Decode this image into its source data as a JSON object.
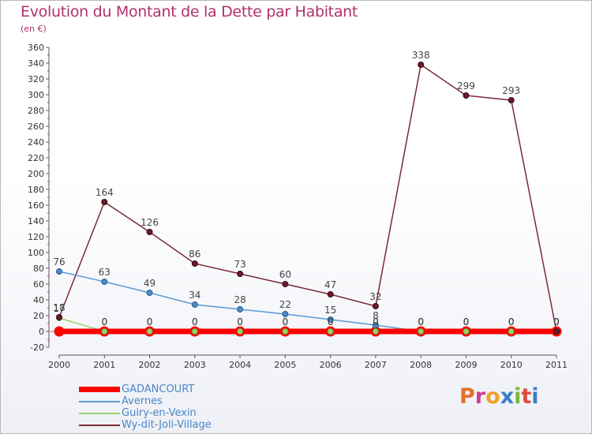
{
  "title": "Evolution du Montant de la Dette par Habitant",
  "subtitle": "(en €)",
  "logo_letters": [
    "P",
    "r",
    "o",
    "x",
    "i",
    "t",
    "i"
  ],
  "logo_colors": [
    "#e8702a",
    "#d13b8f",
    "#f0a22a",
    "#3a7dc9",
    "#7fb636",
    "#e04a3a",
    "#3a7dc9"
  ],
  "chart_data": {
    "type": "line",
    "x": [
      "2000",
      "2001",
      "2002",
      "2003",
      "2004",
      "2005",
      "2006",
      "2007",
      "2008",
      "2009",
      "2010",
      "2011"
    ],
    "ylim": [
      -20,
      360
    ],
    "yticks": [
      -20,
      0,
      20,
      40,
      60,
      80,
      100,
      120,
      140,
      160,
      180,
      200,
      220,
      240,
      260,
      280,
      300,
      320,
      340,
      360
    ],
    "grid": false,
    "legend": "bottom-left",
    "series": [
      {
        "name": "GADANCOURT",
        "color": "#ff0000",
        "values": [
          0,
          0,
          0,
          0,
          0,
          0,
          0,
          0,
          0,
          0,
          0,
          0
        ],
        "labels": [
          "",
          "0",
          "0",
          "0",
          "0",
          "0",
          "0",
          "0",
          "0",
          "0",
          "0",
          "0"
        ]
      },
      {
        "name": "Avernes",
        "color": "#5a9bd4",
        "values": [
          76,
          63,
          49,
          34,
          28,
          22,
          15,
          8,
          0,
          0,
          0,
          0
        ],
        "labels": [
          "76",
          "63",
          "49",
          "34",
          "28",
          "22",
          "15",
          "8",
          "0",
          "0",
          "0",
          "0"
        ]
      },
      {
        "name": "Guiry-en-Vexin",
        "color": "#9ad46a",
        "values": [
          17,
          0,
          0,
          0,
          0,
          0,
          0,
          0,
          0,
          0,
          0,
          0
        ],
        "labels": [
          "17",
          "0",
          "0",
          "0",
          "0",
          "0",
          "0",
          "0",
          "0",
          "0",
          "0",
          "0"
        ]
      },
      {
        "name": "Wy-dit-Joli-Village",
        "color": "#7a2a3a",
        "values": [
          18,
          164,
          126,
          86,
          73,
          60,
          47,
          32,
          338,
          299,
          293,
          0
        ],
        "labels": [
          "18",
          "164",
          "126",
          "86",
          "73",
          "60",
          "47",
          "32",
          "338",
          "299",
          "293",
          "0"
        ]
      }
    ]
  }
}
